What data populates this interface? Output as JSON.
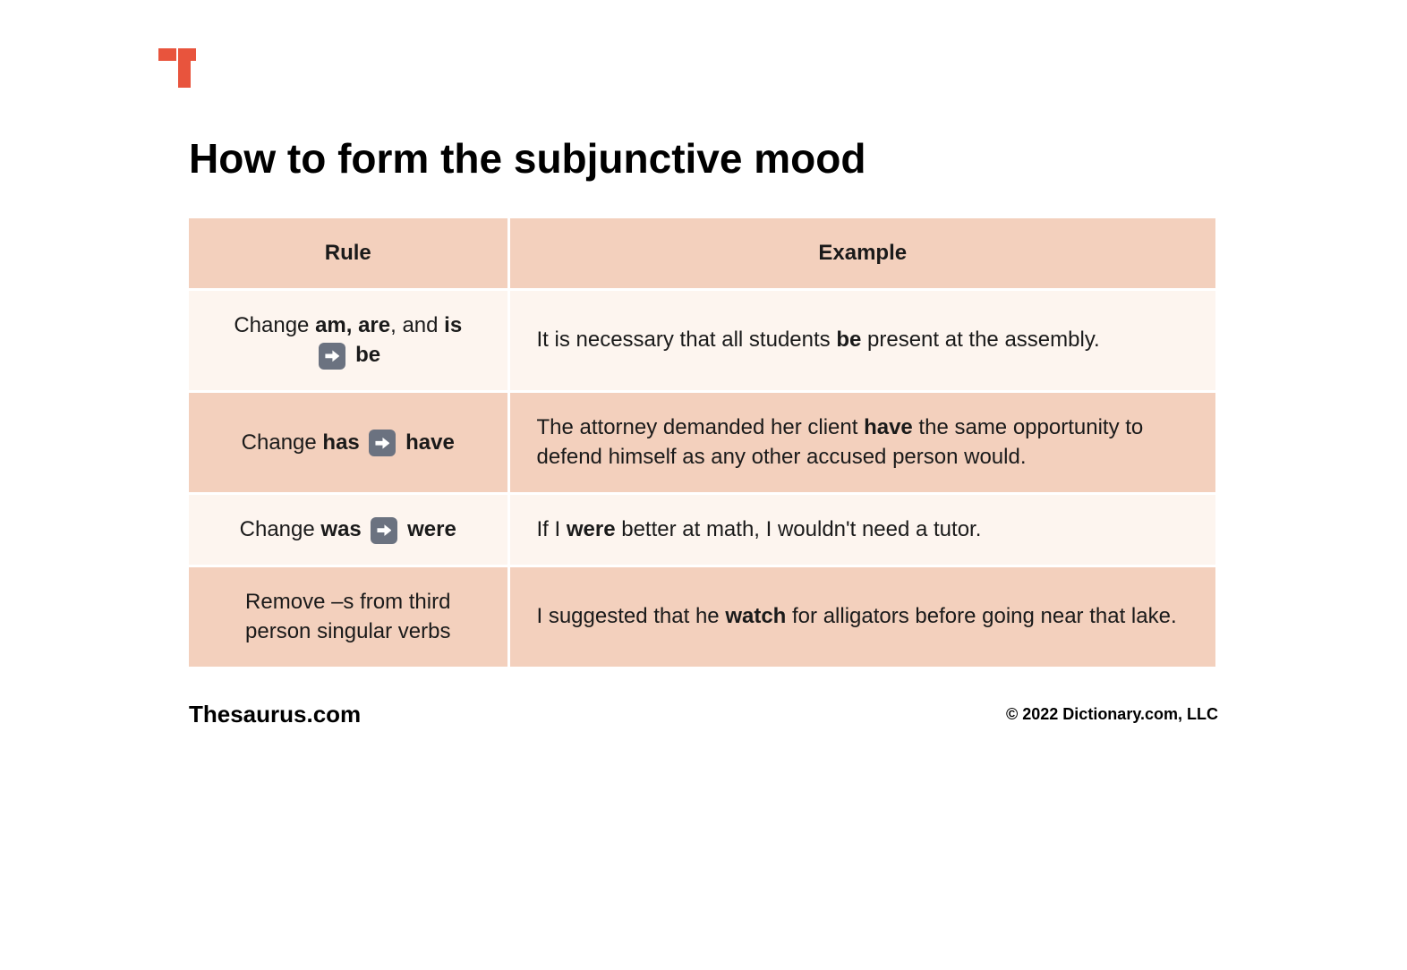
{
  "title": "How to form the subjunctive mood",
  "brand": "Thesaurus.com",
  "copyright": "© 2022 Dictionary.com, LLC",
  "logo_color": "#e8543d",
  "table": {
    "header_bg": "#f3d0bd",
    "row_light_bg": "#fdf5ef",
    "row_dark_bg": "#f3d0bd",
    "columns": [
      "Rule",
      "Example"
    ],
    "rows": [
      {
        "rule_html": "Change <b>am, are</b>, and <b>is</b> {ARROW} <b>be</b>",
        "example_html": "It is necessary that all students <b>be</b> present at the assembly."
      },
      {
        "rule_html": "Change <b>has</b> {ARROW} <b>have</b>",
        "example_html": "The attorney demanded her client <b>have</b> the same opportunity to defend himself as any other accused person would."
      },
      {
        "rule_html": "Change <b>was</b> {ARROW} <b>were</b>",
        "example_html": "If I <b>were</b> better at math, I wouldn't need a tutor."
      },
      {
        "rule_html": "Remove –s from third person singular verbs",
        "example_html": "I suggested that he <b>watch</b> for alligators before going near that lake."
      }
    ]
  }
}
